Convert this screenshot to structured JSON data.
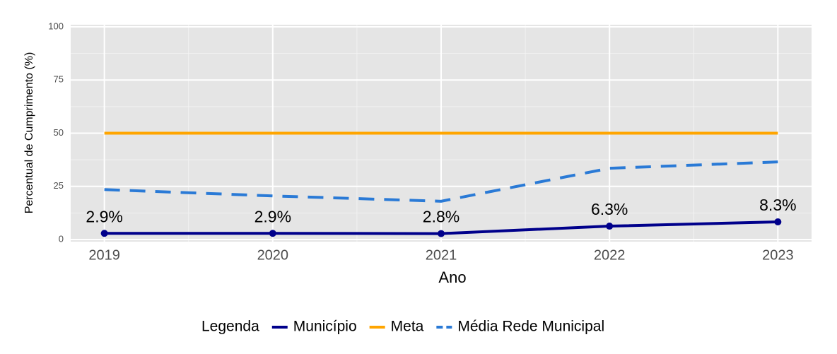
{
  "chart_data": {
    "type": "line",
    "x_label": "Ano",
    "y_label": "Percentual de Cumprimento (%)",
    "x": [
      2019,
      2020,
      2021,
      2022,
      2023
    ],
    "xlim": [
      2018.8,
      2023.2
    ],
    "xticks": [
      2019,
      2020,
      2021,
      2022,
      2023
    ],
    "ylim": [
      -1,
      101
    ],
    "yticks": [
      0,
      25,
      50,
      75,
      100
    ],
    "grid": true,
    "legend_title": "Legenda",
    "legend_position": "bottom",
    "series": [
      {
        "name": "Município",
        "color": "#00008b",
        "linestyle": "solid",
        "markers": true,
        "values": [
          2.9,
          2.9,
          2.8,
          6.3,
          8.3
        ],
        "value_labels": [
          "2.9%",
          "2.9%",
          "2.8%",
          "6.3%",
          "8.3%"
        ]
      },
      {
        "name": "Meta",
        "color": "#ffa500",
        "linestyle": "solid",
        "markers": false,
        "values": [
          50,
          50,
          50,
          50,
          50
        ]
      },
      {
        "name": "Média Rede Municipal",
        "color": "#2a7ad6",
        "linestyle": "dashed",
        "markers": false,
        "values": [
          23.5,
          20.5,
          18.0,
          33.5,
          36.5
        ]
      }
    ]
  }
}
